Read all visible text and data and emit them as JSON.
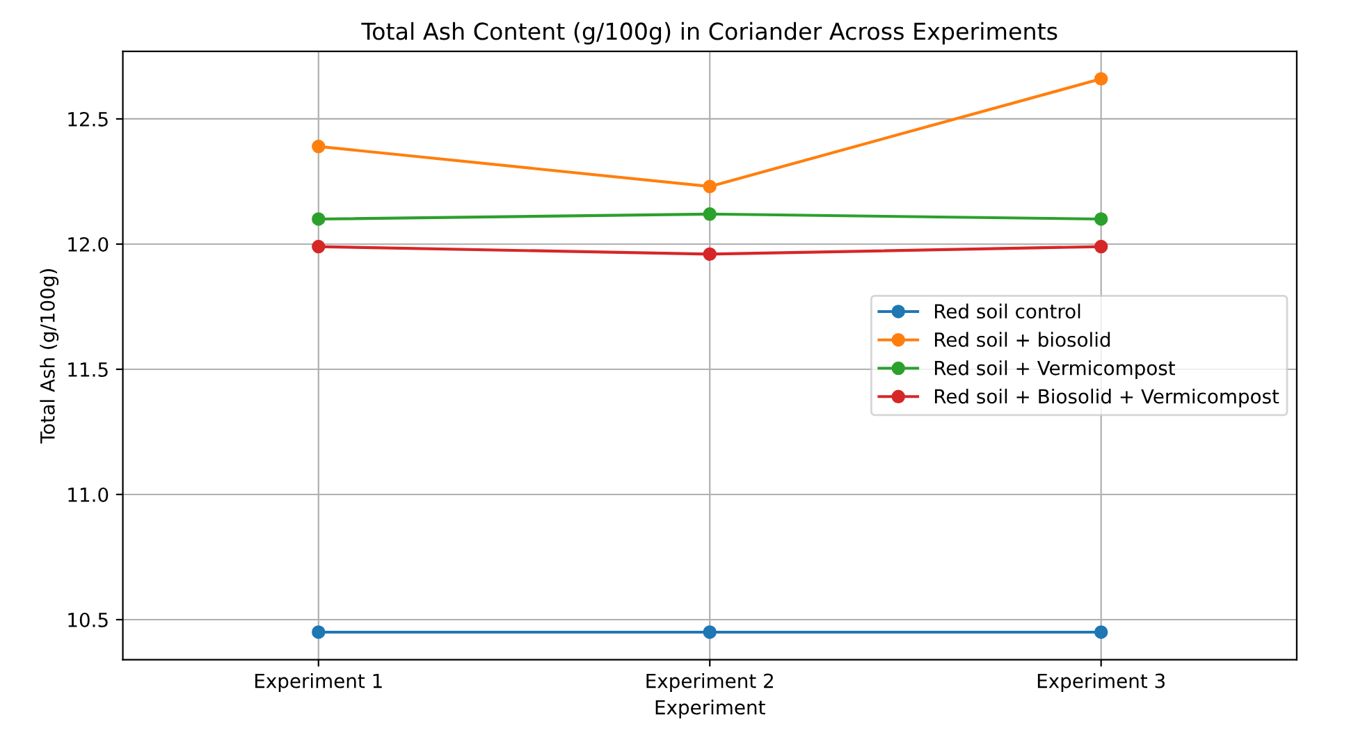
{
  "chart_data": {
    "type": "line",
    "title": "Total Ash Content (g/100g) in Coriander Across Experiments",
    "xlabel": "Experiment",
    "ylabel": "Total Ash (g/100g)",
    "categories": [
      "Experiment 1",
      "Experiment 2",
      "Experiment 3"
    ],
    "series": [
      {
        "name": "Red soil control",
        "color": "#1f77b4",
        "values": [
          10.45,
          10.45,
          10.45
        ]
      },
      {
        "name": "Red soil + biosolid",
        "color": "#ff7f0e",
        "values": [
          12.39,
          12.23,
          12.66
        ]
      },
      {
        "name": "Red soil + Vermicompost",
        "color": "#2ca02c",
        "values": [
          12.1,
          12.12,
          12.1
        ]
      },
      {
        "name": "Red soil + Biosolid + Vermicompost",
        "color": "#d62728",
        "values": [
          11.99,
          11.96,
          11.99
        ]
      }
    ],
    "ylim": [
      10.34,
      12.77
    ],
    "yticks": [
      10.5,
      {
        "value": 11,
        "label": "11.0"
      },
      11.5,
      {
        "value": 12,
        "label": "12.0"
      },
      12.5
    ],
    "grid": true,
    "legend": "center right",
    "marker": "circle",
    "line_style": "solid"
  }
}
